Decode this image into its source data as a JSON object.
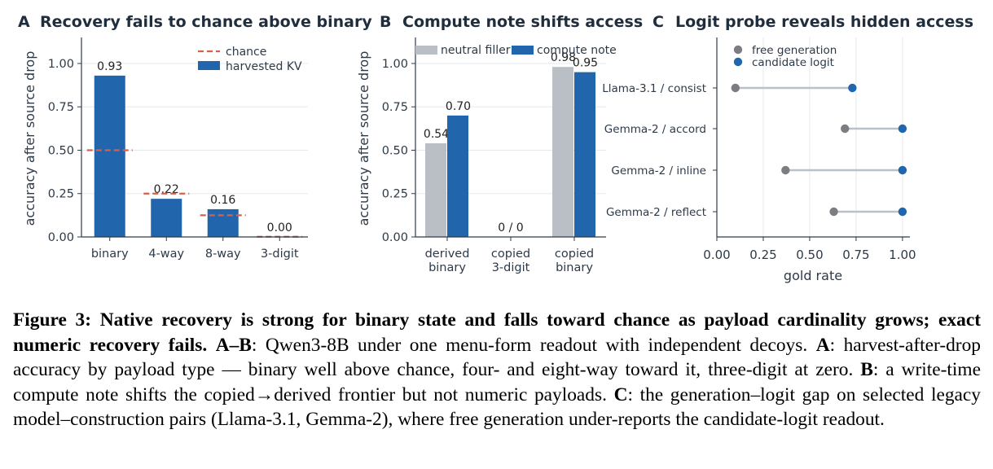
{
  "chart_data": [
    {
      "type": "bar",
      "panel_letter": "A",
      "title": "Recovery fails to chance above binary",
      "ylabel": "accuracy after source drop",
      "categories": [
        "binary",
        "4-way",
        "8-way",
        "3-digit"
      ],
      "values": [
        0.93,
        0.22,
        0.16,
        0.0
      ],
      "value_labels": [
        "0.93",
        "0.22",
        "0.16",
        "0.00"
      ],
      "chance": [
        0.5,
        0.25,
        0.125,
        0.001
      ],
      "ylim": [
        0,
        1.15
      ],
      "yticks": [
        "0.00",
        "0.25",
        "0.50",
        "0.75",
        "1.00"
      ],
      "grid": "horizontal",
      "legend": {
        "placement": "top-right",
        "entries": [
          "chance",
          "harvested KV"
        ]
      },
      "colors": {
        "bar": "#2166ac",
        "chance": "#d6604d"
      }
    },
    {
      "type": "bar",
      "panel_letter": "B",
      "title": "Compute note shifts access",
      "ylabel": "accuracy after source drop",
      "categories": [
        [
          "derived",
          "binary"
        ],
        [
          "copied",
          "3-digit"
        ],
        [
          "copied",
          "binary"
        ]
      ],
      "series": [
        {
          "name": "neutral filler",
          "values": [
            0.54,
            null,
            0.98
          ],
          "labels": [
            "0.54",
            "",
            "0.98"
          ]
        },
        {
          "name": "compute note",
          "values": [
            0.7,
            null,
            0.95
          ],
          "labels": [
            "0.70",
            "",
            "0.95"
          ]
        }
      ],
      "center_labels": [
        "",
        "0 / 0",
        ""
      ],
      "ylim": [
        0,
        1.15
      ],
      "yticks": [
        "0.00",
        "0.25",
        "0.50",
        "0.75",
        "1.00"
      ],
      "grid": "horizontal",
      "legend": {
        "placement": "top"
      },
      "colors": {
        "neutral filler": "#babfc5",
        "compute note": "#2166ac"
      }
    },
    {
      "type": "dumbbell",
      "panel_letter": "C",
      "title": "Logit probe reveals hidden access",
      "xlabel": "gold rate",
      "categories": [
        "Llama-3.1 / consist",
        "Gemma-2 / accord",
        "Gemma-2 / inline",
        "Gemma-2 / reflect"
      ],
      "series": [
        {
          "name": "free generation",
          "values": [
            0.1,
            0.69,
            0.37,
            0.63
          ]
        },
        {
          "name": "candidate logit",
          "values": [
            0.73,
            1.0,
            1.0,
            1.0
          ]
        }
      ],
      "xlim": [
        0,
        1.04
      ],
      "xticks": [
        "0.00",
        "0.25",
        "0.50",
        "0.75",
        "1.00"
      ],
      "grid": "vertical",
      "legend": {
        "placement": "top-left"
      },
      "colors": {
        "free generation": "#7b7d82",
        "candidate logit": "#2166ac",
        "connector": "#b9c0c8"
      }
    }
  ],
  "caption": {
    "bold_lead": "Figure 3: Native recovery is strong for binary state and falls toward chance as payload cardinality grows; exact numeric recovery fails.",
    "ab_label": "A–B",
    "ab_text": ": Qwen3-8B under one menu-form readout with independent decoys.",
    "a_label": "A",
    "a_text": ": harvest-after-drop accuracy by payload type — binary well above chance, four- and eight-way toward it, three-digit at zero.",
    "b_label": "B",
    "b_text": ": a write-time compute note shifts the copied→derived frontier but not numeric payloads.",
    "c_label": "C",
    "c_text": ": the generation–logit gap on selected legacy model–construction pairs (Llama-3.1, Gemma-2), where free generation under-reports the candidate-logit readout."
  }
}
